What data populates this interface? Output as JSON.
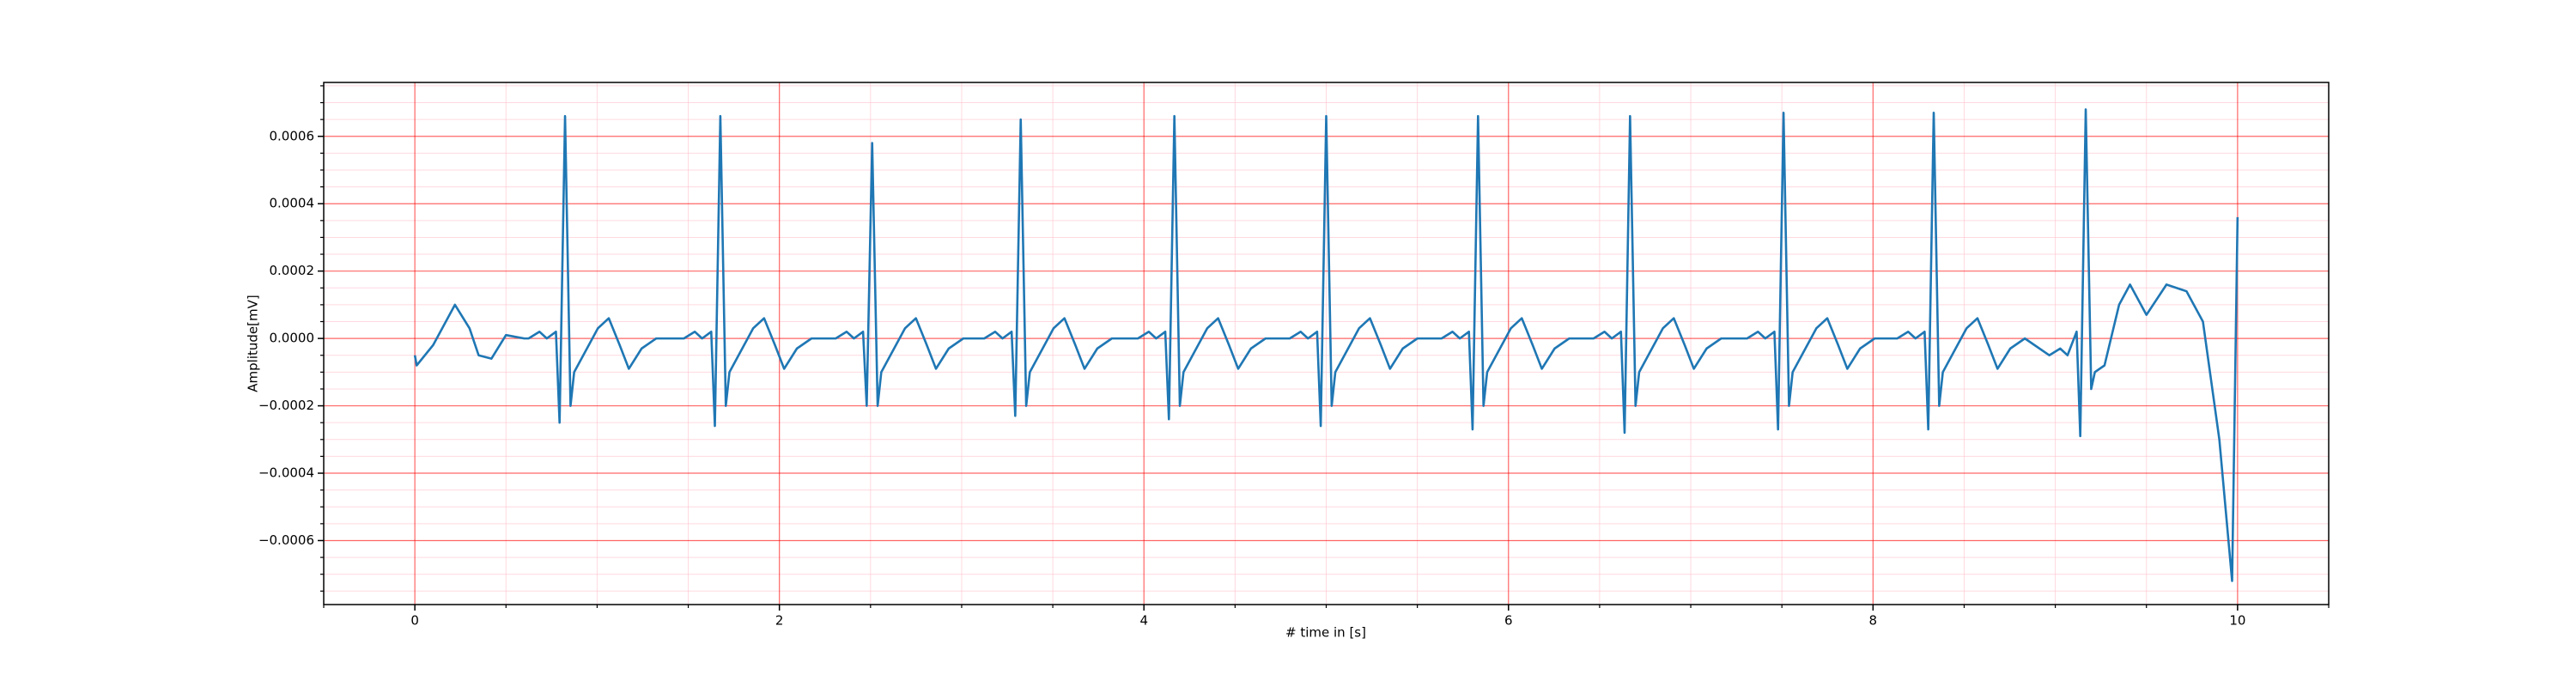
{
  "chart_data": {
    "type": "line",
    "xlabel": "# time in [s]",
    "ylabel": "Amplitude[mV]",
    "color": "#1f77b4",
    "grid": true,
    "minor_grid": true,
    "xlim": [
      -0.5,
      10.5
    ],
    "ylim": [
      -0.00079,
      0.00076
    ],
    "xticks": [
      0,
      2,
      4,
      6,
      8,
      10
    ],
    "yticks": [
      {
        "value": -0.0006,
        "label": "−0.0006"
      },
      {
        "value": -0.0004,
        "label": "−0.0004"
      },
      {
        "value": -0.0002,
        "label": "−0.0002"
      },
      {
        "value": 0,
        "label": "0.0000"
      },
      0.0002,
      0.0004,
      0.0006
    ],
    "xminorticks": [
      -0.5,
      0.5,
      1,
      1.5,
      2.5,
      3,
      3.5,
      4.5,
      5,
      5.5,
      6.5,
      7,
      7.5,
      8.5,
      9,
      9.5,
      10.5
    ],
    "yminorticks": [
      -0.00075,
      -0.0007,
      -0.00065,
      -0.00055,
      -0.0005,
      -0.00045,
      -0.00035,
      -0.0003,
      -0.00025,
      -0.00015,
      -0.0001,
      -5e-05,
      5e-05,
      0.0001,
      0.00015,
      0.00025,
      0.0003,
      0.00035,
      0.00045,
      0.0005,
      0.00055,
      0.00065,
      0.0007,
      0.00075
    ],
    "x": [
      0,
      0.01,
      0.1,
      0.15,
      0.22,
      0.3,
      0.35,
      0.42,
      0.5,
      0.6,
      0.624,
      0.684,
      0.724,
      0.774,
      0.794,
      0.824,
      0.854,
      0.874,
      0.924,
      1.004,
      1.064,
      1.124,
      1.174,
      1.244,
      1.324,
      1.476,
      1.536,
      1.576,
      1.626,
      1.646,
      1.676,
      1.706,
      1.726,
      1.776,
      1.856,
      1.916,
      1.976,
      2.026,
      2.096,
      2.176,
      2.309,
      2.369,
      2.409,
      2.459,
      2.479,
      2.509,
      2.539,
      2.559,
      2.609,
      2.689,
      2.749,
      2.809,
      2.859,
      2.929,
      3.009,
      3.124,
      3.184,
      3.224,
      3.274,
      3.294,
      3.324,
      3.354,
      3.374,
      3.424,
      3.504,
      3.564,
      3.624,
      3.674,
      3.744,
      3.824,
      3.967,
      4.027,
      4.067,
      4.117,
      4.137,
      4.167,
      4.197,
      4.217,
      4.267,
      4.347,
      4.407,
      4.467,
      4.517,
      4.587,
      4.667,
      4.8,
      4.86,
      4.9,
      4.95,
      4.97,
      5.0,
      5.03,
      5.05,
      5.1,
      5.18,
      5.24,
      5.3,
      5.35,
      5.42,
      5.5,
      5.633,
      5.693,
      5.733,
      5.783,
      5.803,
      5.833,
      5.863,
      5.883,
      5.933,
      6.013,
      6.073,
      6.133,
      6.183,
      6.253,
      6.333,
      6.467,
      6.527,
      6.567,
      6.617,
      6.637,
      6.667,
      6.697,
      6.717,
      6.767,
      6.847,
      6.907,
      6.967,
      7.017,
      7.087,
      7.167,
      7.309,
      7.369,
      7.409,
      7.459,
      7.479,
      7.509,
      7.539,
      7.559,
      7.609,
      7.689,
      7.749,
      7.809,
      7.859,
      7.929,
      8.009,
      8.133,
      8.193,
      8.233,
      8.283,
      8.303,
      8.333,
      8.363,
      8.383,
      8.433,
      8.513,
      8.573,
      8.633,
      8.683,
      8.753,
      8.833,
      8.967,
      9.027,
      9.067,
      9.117,
      9.137,
      9.167,
      9.197,
      9.217,
      9.27,
      9.35,
      9.41,
      9.5,
      9.61,
      9.72,
      9.81,
      9.9,
      9.97,
      10.0
    ],
    "values": [
      -5e-05,
      -8e-05,
      -2e-05,
      3e-05,
      0.0001,
      3e-05,
      -5e-05,
      -6e-05,
      1e-05,
      0,
      0,
      2e-05,
      0,
      2e-05,
      -0.00025,
      0.00066,
      -0.0002,
      -0.0001,
      -5e-05,
      3e-05,
      6e-05,
      -2e-05,
      -9e-05,
      -3e-05,
      0,
      0,
      2e-05,
      0,
      2e-05,
      -0.00026,
      0.00066,
      -0.0002,
      -0.0001,
      -5e-05,
      3e-05,
      6e-05,
      -2e-05,
      -9e-05,
      -3e-05,
      0,
      0,
      2e-05,
      0,
      2e-05,
      -0.0002,
      0.00058,
      -0.0002,
      -0.0001,
      -5e-05,
      3e-05,
      6e-05,
      -2e-05,
      -9e-05,
      -3e-05,
      0,
      0,
      2e-05,
      0,
      2e-05,
      -0.00023,
      0.00065,
      -0.0002,
      -0.0001,
      -5e-05,
      3e-05,
      6e-05,
      -2e-05,
      -9e-05,
      -3e-05,
      0,
      0,
      2e-05,
      0,
      2e-05,
      -0.00024,
      0.00066,
      -0.0002,
      -0.0001,
      -5e-05,
      3e-05,
      6e-05,
      -2e-05,
      -9e-05,
      -3e-05,
      0,
      0,
      2e-05,
      0,
      2e-05,
      -0.00026,
      0.00066,
      -0.0002,
      -0.0001,
      -5e-05,
      3e-05,
      6e-05,
      -2e-05,
      -9e-05,
      -3e-05,
      0,
      0,
      2e-05,
      0,
      2e-05,
      -0.00027,
      0.00066,
      -0.0002,
      -0.0001,
      -5e-05,
      3e-05,
      6e-05,
      -2e-05,
      -9e-05,
      -3e-05,
      0,
      0,
      2e-05,
      0,
      2e-05,
      -0.00028,
      0.00066,
      -0.0002,
      -0.0001,
      -5e-05,
      3e-05,
      6e-05,
      -2e-05,
      -9e-05,
      -3e-05,
      0,
      0,
      2e-05,
      0,
      2e-05,
      -0.00027,
      0.00067,
      -0.0002,
      -0.0001,
      -5e-05,
      3e-05,
      6e-05,
      -2e-05,
      -9e-05,
      -3e-05,
      0,
      0,
      2e-05,
      0,
      2e-05,
      -0.00027,
      0.00067,
      -0.0002,
      -0.0001,
      -5e-05,
      3e-05,
      6e-05,
      -2e-05,
      -9e-05,
      -3e-05,
      0,
      -5e-05,
      -3e-05,
      -5e-05,
      2e-05,
      -0.00029,
      0.00068,
      -0.00015,
      -0.0001,
      -8e-05,
      0.0001,
      0.00016,
      7e-05,
      0.00016,
      0.00014,
      5e-05,
      -0.0003,
      -0.00072,
      0.00036
    ]
  }
}
